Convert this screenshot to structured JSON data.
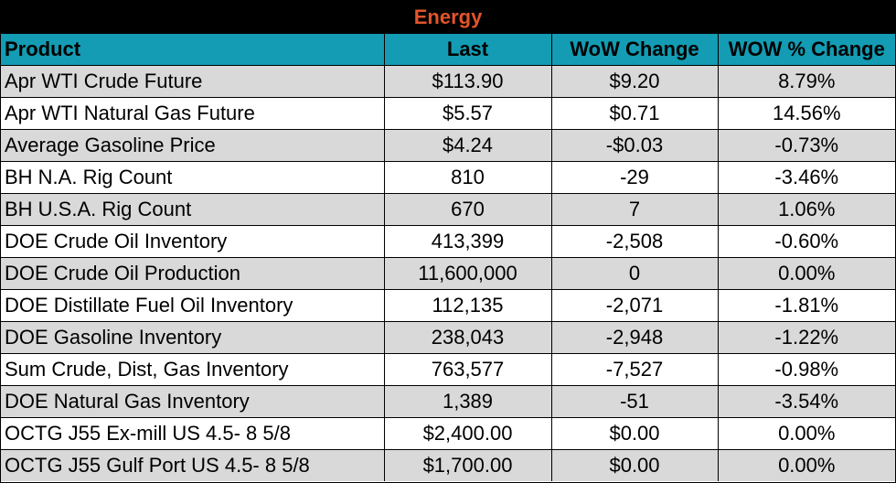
{
  "title": "Energy",
  "headers": [
    "Product",
    "Last",
    "WoW Change",
    "WOW % Change"
  ],
  "rows": [
    {
      "product": "Apr WTI Crude Future",
      "last": "$113.90",
      "wow": "$9.20",
      "pct": "8.79%"
    },
    {
      "product": "Apr WTI Natural Gas Future",
      "last": "$5.57",
      "wow": "$0.71",
      "pct": "14.56%"
    },
    {
      "product": "Average Gasoline Price",
      "last": "$4.24",
      "wow": "-$0.03",
      "pct": "-0.73%"
    },
    {
      "product": "BH N.A. Rig Count",
      "last": "810",
      "wow": "-29",
      "pct": "-3.46%"
    },
    {
      "product": "BH U.S.A. Rig Count",
      "last": "670",
      "wow": "7",
      "pct": "1.06%"
    },
    {
      "product": "DOE Crude Oil Inventory",
      "last": "413,399",
      "wow": "-2,508",
      "pct": "-0.60%"
    },
    {
      "product": "DOE Crude Oil Production",
      "last": "11,600,000",
      "wow": "0",
      "pct": "0.00%"
    },
    {
      "product": "DOE Distillate Fuel Oil Inventory",
      "last": "112,135",
      "wow": "-2,071",
      "pct": "-1.81%"
    },
    {
      "product": "DOE Gasoline Inventory",
      "last": "238,043",
      "wow": "-2,948",
      "pct": "-1.22%"
    },
    {
      "product": "Sum Crude, Dist, Gas Inventory",
      "last": "763,577",
      "wow": "-7,527",
      "pct": "-0.98%"
    },
    {
      "product": "DOE Natural Gas Inventory",
      "last": "1,389",
      "wow": "-51",
      "pct": "-3.54%"
    },
    {
      "product": "OCTG J55 Ex-mill US 4.5- 8 5/8",
      "last": "$2,400.00",
      "wow": "$0.00",
      "pct": "0.00%"
    },
    {
      "product": "OCTG J55 Gulf Port US 4.5- 8 5/8",
      "last": "$1,700.00",
      "wow": "$0.00",
      "pct": "0.00%"
    }
  ]
}
